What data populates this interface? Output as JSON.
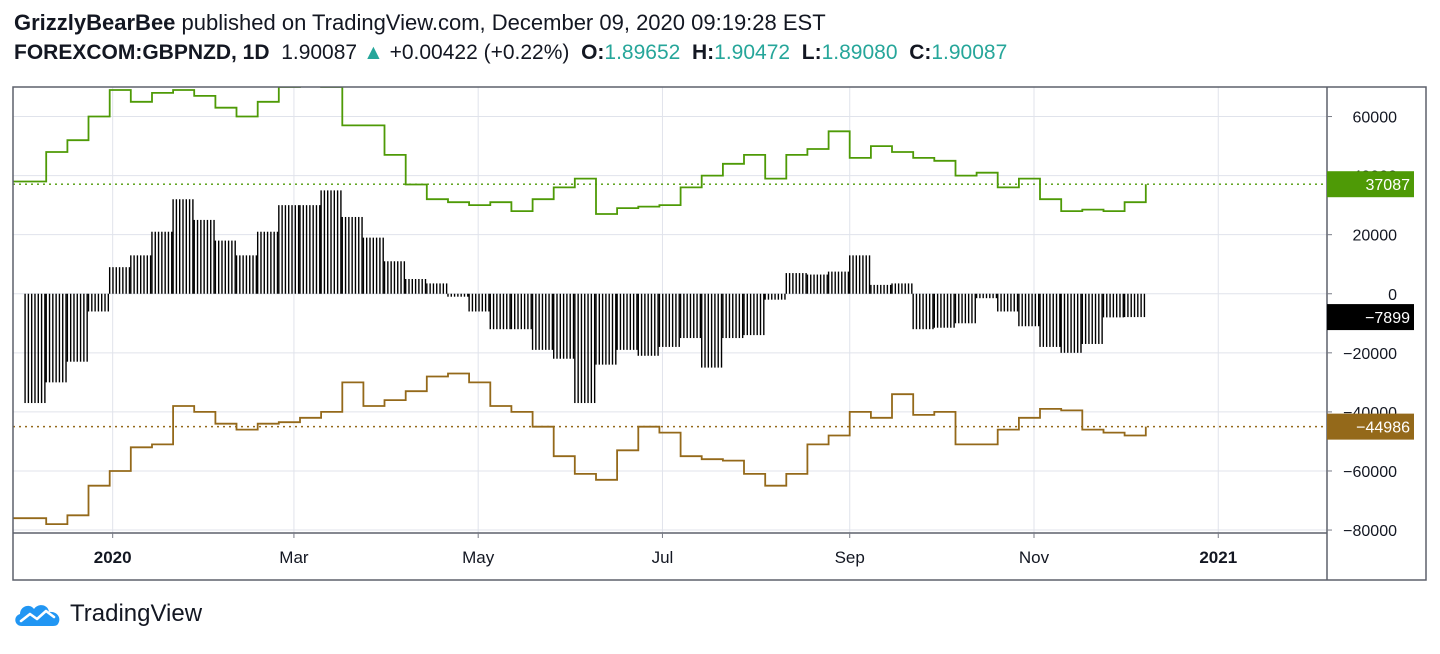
{
  "header": {
    "author": "GrizzlyBearBee",
    "published_text": "published on TradingView.com, December 09, 2020 09:19:28 EST",
    "symbol": "FOREXCOM:GBPNZD, 1D",
    "last": "1.90087",
    "change": "+0.00422 (+0.22%)",
    "o_label": "O:",
    "o_value": "1.89652",
    "h_label": "H:",
    "h_value": "1.90472",
    "l_label": "L:",
    "l_value": "1.89080",
    "c_label": "C:",
    "c_value": "1.90087"
  },
  "footer": {
    "brand": "TradingView"
  },
  "colors": {
    "green": "#4e9a06",
    "gold": "#94691a",
    "black": "#000000",
    "grid": "#e0e3eb",
    "axis": "#787b86",
    "teal": "#26a69a"
  },
  "chart_data": {
    "type": "line",
    "y_ticks": [
      60000,
      40000,
      20000,
      0,
      -20000,
      -40000,
      -60000,
      -80000
    ],
    "y_tick_labels": [
      "60000",
      "40000",
      "20000",
      "0",
      "−20000",
      "−40000",
      "−60000",
      "−80000"
    ],
    "ylim": [
      -81000,
      70000
    ],
    "x_tick_labels": [
      "2020",
      "Mar",
      "May",
      "Jul",
      "Sep",
      "Nov",
      "2021"
    ],
    "x_tick_dates": [
      "2020-01-01",
      "2020-03-01",
      "2020-05-01",
      "2020-07-01",
      "2020-09-01",
      "2020-11-01",
      "2021-01-01"
    ],
    "x_range": [
      "2019-11-29",
      "2021-02-06"
    ],
    "last_values": {
      "green": {
        "value": 37087,
        "label": "37087"
      },
      "black": {
        "value": -7899,
        "label": "−7899"
      },
      "gold": {
        "value": -44986,
        "label": "−44986"
      }
    },
    "series": [
      {
        "color_key": "green",
        "style": "step",
        "dates": [
          "2019-12-03",
          "2019-12-10",
          "2019-12-17",
          "2019-12-24",
          "2019-12-31",
          "2020-01-07",
          "2020-01-14",
          "2020-01-21",
          "2020-01-28",
          "2020-02-04",
          "2020-02-11",
          "2020-02-18",
          "2020-02-25",
          "2020-03-03",
          "2020-03-10",
          "2020-03-17",
          "2020-03-24",
          "2020-03-31",
          "2020-04-07",
          "2020-04-14",
          "2020-04-21",
          "2020-04-28",
          "2020-05-05",
          "2020-05-12",
          "2020-05-19",
          "2020-05-26",
          "2020-06-02",
          "2020-06-09",
          "2020-06-16",
          "2020-06-23",
          "2020-06-30",
          "2020-07-07",
          "2020-07-14",
          "2020-07-21",
          "2020-07-28",
          "2020-08-04",
          "2020-08-11",
          "2020-08-18",
          "2020-08-25",
          "2020-09-01",
          "2020-09-08",
          "2020-09-15",
          "2020-09-22",
          "2020-09-29",
          "2020-10-06",
          "2020-10-13",
          "2020-10-20",
          "2020-10-27",
          "2020-11-03",
          "2020-11-10",
          "2020-11-17",
          "2020-11-24",
          "2020-12-01",
          "2020-12-08"
        ],
        "values": [
          38000,
          48000,
          52000,
          60000,
          69000,
          65000,
          68000,
          69000,
          67000,
          63000,
          60000,
          65000,
          70000,
          75000,
          70000,
          57000,
          57000,
          47000,
          37000,
          32000,
          31000,
          30000,
          31000,
          28000,
          32000,
          36000,
          39000,
          27000,
          29000,
          29500,
          30000,
          36000,
          40000,
          44000,
          47000,
          39000,
          47000,
          49000,
          55000,
          46000,
          50000,
          48000,
          46000,
          45000,
          40000,
          41000,
          36000,
          39000,
          32000,
          28000,
          28500,
          28000,
          31000,
          37087
        ]
      },
      {
        "color_key": "black",
        "style": "histogram",
        "dates": [
          "2019-12-03",
          "2019-12-10",
          "2019-12-17",
          "2019-12-24",
          "2019-12-31",
          "2020-01-07",
          "2020-01-14",
          "2020-01-21",
          "2020-01-28",
          "2020-02-04",
          "2020-02-11",
          "2020-02-18",
          "2020-02-25",
          "2020-03-03",
          "2020-03-10",
          "2020-03-17",
          "2020-03-24",
          "2020-03-31",
          "2020-04-07",
          "2020-04-14",
          "2020-04-21",
          "2020-04-28",
          "2020-05-05",
          "2020-05-12",
          "2020-05-19",
          "2020-05-26",
          "2020-06-02",
          "2020-06-09",
          "2020-06-16",
          "2020-06-23",
          "2020-06-30",
          "2020-07-07",
          "2020-07-14",
          "2020-07-21",
          "2020-07-28",
          "2020-08-04",
          "2020-08-11",
          "2020-08-18",
          "2020-08-25",
          "2020-09-01",
          "2020-09-08",
          "2020-09-15",
          "2020-09-22",
          "2020-09-29",
          "2020-10-06",
          "2020-10-13",
          "2020-10-20",
          "2020-10-27",
          "2020-11-03",
          "2020-11-10",
          "2020-11-17",
          "2020-11-24",
          "2020-12-01",
          "2020-12-08"
        ],
        "values": [
          -37000,
          -30000,
          -23000,
          -6000,
          9000,
          13000,
          21000,
          32000,
          25000,
          18000,
          13000,
          21000,
          30000,
          30000,
          35000,
          26000,
          19000,
          11000,
          5000,
          3500,
          -1000,
          -6000,
          -12000,
          -12000,
          -19000,
          -22000,
          -37000,
          -24000,
          -19000,
          -21000,
          -18000,
          -15000,
          -25000,
          -15000,
          -14000,
          -2000,
          7000,
          6500,
          7500,
          13000,
          3000,
          3500,
          -12000,
          -11500,
          -10000,
          -1500,
          -6000,
          -11000,
          -18000,
          -20000,
          -17000,
          -8000,
          -7899,
          -7899
        ]
      },
      {
        "color_key": "gold",
        "style": "step",
        "dates": [
          "2019-12-03",
          "2019-12-10",
          "2019-12-17",
          "2019-12-24",
          "2019-12-31",
          "2020-01-07",
          "2020-01-14",
          "2020-01-21",
          "2020-01-28",
          "2020-02-04",
          "2020-02-11",
          "2020-02-18",
          "2020-02-25",
          "2020-03-03",
          "2020-03-10",
          "2020-03-17",
          "2020-03-24",
          "2020-03-31",
          "2020-04-07",
          "2020-04-14",
          "2020-04-21",
          "2020-04-28",
          "2020-05-05",
          "2020-05-12",
          "2020-05-19",
          "2020-05-26",
          "2020-06-02",
          "2020-06-09",
          "2020-06-16",
          "2020-06-23",
          "2020-06-30",
          "2020-07-07",
          "2020-07-14",
          "2020-07-21",
          "2020-07-28",
          "2020-08-04",
          "2020-08-11",
          "2020-08-18",
          "2020-08-25",
          "2020-09-01",
          "2020-09-08",
          "2020-09-15",
          "2020-09-22",
          "2020-09-29",
          "2020-10-06",
          "2020-10-13",
          "2020-10-20",
          "2020-10-27",
          "2020-11-03",
          "2020-11-10",
          "2020-11-17",
          "2020-11-24",
          "2020-12-01",
          "2020-12-08"
        ],
        "values": [
          -76000,
          -78000,
          -75000,
          -65000,
          -60000,
          -52000,
          -51000,
          -38000,
          -40000,
          -44000,
          -46000,
          -44000,
          -43500,
          -42000,
          -40000,
          -30000,
          -38000,
          -36000,
          -33000,
          -28000,
          -27000,
          -30000,
          -38000,
          -40000,
          -45000,
          -55000,
          -61000,
          -63000,
          -53000,
          -45000,
          -47000,
          -55000,
          -56000,
          -56500,
          -61000,
          -65000,
          -61000,
          -51000,
          -48000,
          -40000,
          -42000,
          -34000,
          -41000,
          -40000,
          -51000,
          -51000,
          -46000,
          -42000,
          -39000,
          -39500,
          -46000,
          -47000,
          -48000,
          -44986
        ]
      }
    ]
  }
}
